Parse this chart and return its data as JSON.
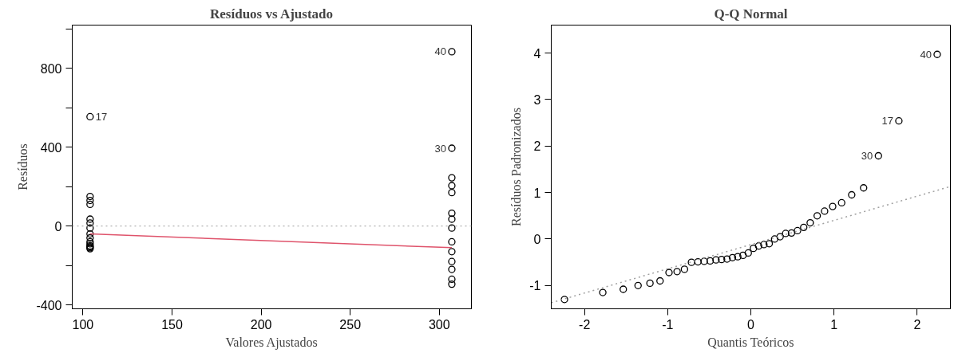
{
  "chart_data": [
    {
      "type": "scatter",
      "title": "Resíduos vs Ajustado",
      "xlabel": "Valores Ajustados",
      "ylabel": "Resíduos",
      "xlim": [
        94,
        318
      ],
      "ylim": [
        -420,
        1020
      ],
      "xticks": [
        100,
        150,
        200,
        250,
        300
      ],
      "yticks": [
        -400,
        {
          "value": -200,
          "label": null
        },
        0,
        {
          "value": 200,
          "label": null
        },
        400,
        {
          "value": 600,
          "label": null
        },
        800,
        {
          "value": 1000,
          "label": null
        }
      ],
      "grid": false,
      "marker": "circle",
      "series": [
        {
          "color": "#000000",
          "x": [
            104,
            104,
            104,
            104,
            104,
            104,
            104,
            104,
            104,
            104,
            104,
            104,
            104,
            104,
            104,
            307,
            307,
            307,
            307,
            307,
            307,
            307,
            307,
            307,
            307,
            307,
            307,
            307,
            307
          ],
          "values": [
            555,
            150,
            130,
            110,
            35,
            15,
            -10,
            -40,
            -60,
            -80,
            -90,
            -100,
            -105,
            -110,
            -115,
            885,
            395,
            245,
            205,
            170,
            65,
            35,
            -10,
            -80,
            -130,
            -180,
            -220,
            -270,
            -295
          ]
        },
        {
          "type": "line",
          "marker": "none",
          "color": "#df536b",
          "line_style": "solid",
          "x": [
            104,
            307
          ],
          "values": [
            -40,
            -110
          ]
        }
      ],
      "ref_lines": [
        {
          "axis": "y",
          "value": 0,
          "color": "#b0b0b0",
          "line_style": "dotted"
        }
      ],
      "annotations": [
        {
          "text": "17",
          "x": 104,
          "y": 555
        },
        {
          "text": "40",
          "x": 307,
          "y": 885
        },
        {
          "text": "30",
          "x": 307,
          "y": 395
        }
      ]
    },
    {
      "type": "scatter",
      "title": "Q-Q Normal",
      "xlabel": "Quantis Teóricos",
      "ylabel": "Resíduos Padronizados",
      "xlim": [
        -2.4,
        2.4
      ],
      "ylim": [
        -1.5,
        4.6
      ],
      "xticks": [
        -2,
        -1,
        0,
        1,
        2
      ],
      "yticks": [
        -1,
        0,
        1,
        2,
        3,
        4
      ],
      "grid": false,
      "marker": "circle",
      "series": [
        {
          "color": "#000000",
          "x": [
            -2.241,
            -1.78,
            -1.534,
            -1.356,
            -1.213,
            -1.092,
            -0.984,
            -0.887,
            -0.798,
            -0.714,
            -0.636,
            -0.561,
            -0.489,
            -0.419,
            -0.352,
            -0.286,
            -0.221,
            -0.157,
            -0.094,
            -0.031,
            0.031,
            0.094,
            0.157,
            0.221,
            0.286,
            0.352,
            0.419,
            0.489,
            0.561,
            0.636,
            0.714,
            0.798,
            0.887,
            0.984,
            1.092,
            1.213,
            1.356,
            1.534,
            1.78,
            2.241
          ],
          "values": [
            -1.3,
            -1.15,
            -1.08,
            -1.0,
            -0.95,
            -0.9,
            -0.72,
            -0.7,
            -0.65,
            -0.5,
            -0.49,
            -0.48,
            -0.47,
            -0.45,
            -0.44,
            -0.43,
            -0.4,
            -0.38,
            -0.35,
            -0.3,
            -0.2,
            -0.15,
            -0.12,
            -0.1,
            0.0,
            0.05,
            0.12,
            0.13,
            0.18,
            0.25,
            0.35,
            0.5,
            0.6,
            0.7,
            0.78,
            0.95,
            1.1,
            1.79,
            2.54,
            3.97
          ]
        },
        {
          "type": "line",
          "marker": "none",
          "color": "#a0a0a0",
          "line_style": "dotted",
          "x": [
            -2.4,
            2.4
          ],
          "values": [
            -1.37,
            1.13
          ]
        }
      ],
      "annotations": [
        {
          "text": "40",
          "x": 2.241,
          "y": 3.97
        },
        {
          "text": "17",
          "x": 1.78,
          "y": 2.54
        },
        {
          "text": "30",
          "x": 1.534,
          "y": 1.79
        }
      ]
    }
  ]
}
